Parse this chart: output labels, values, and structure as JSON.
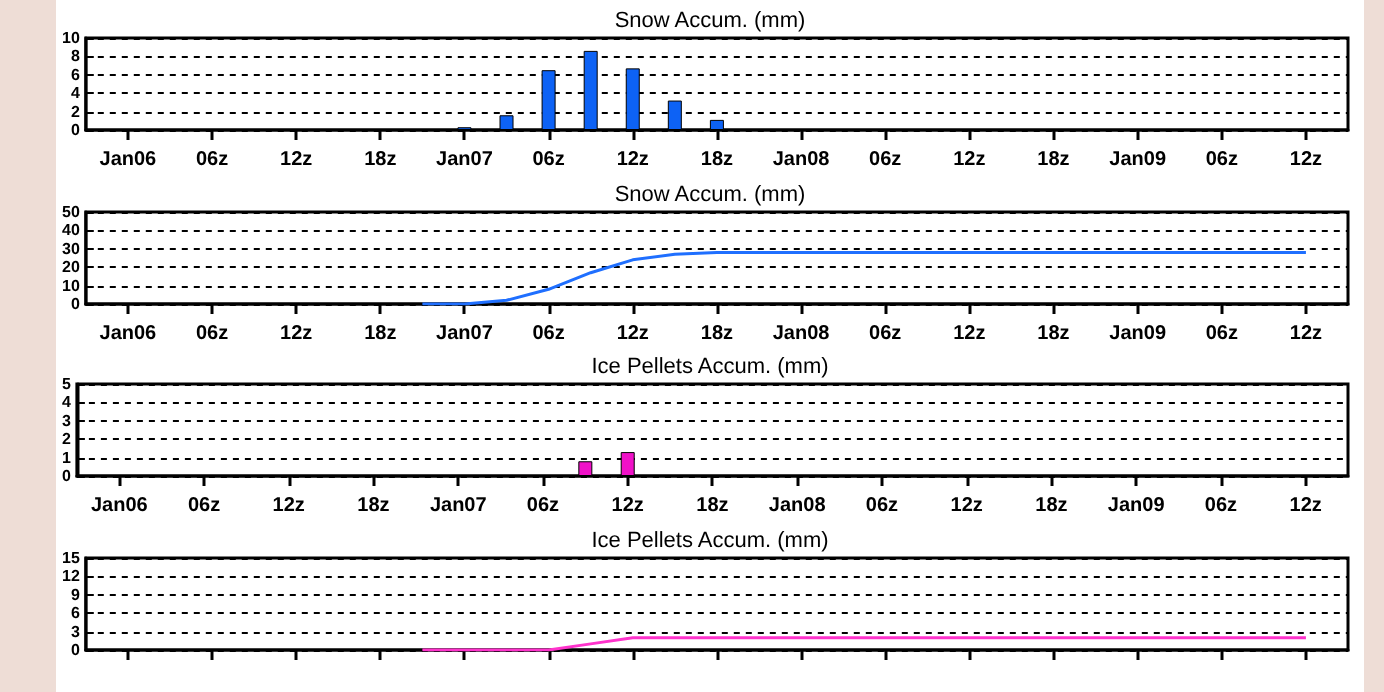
{
  "chart_data": [
    {
      "type": "bar",
      "title": "Snow Accum. (mm)",
      "x": [
        "--01-07T00:00",
        "--01-07T03:00",
        "--01-07T06:00",
        "--01-07T09:00",
        "--01-07T12:00",
        "--01-07T15:00",
        "--01-07T18:00"
      ],
      "values": [
        0.3,
        1.6,
        6.5,
        8.6,
        6.7,
        3.2,
        1.1
      ],
      "color": "#0d62f5",
      "xlim": [
        "--01-05T21:00",
        "--01-09T15:00"
      ],
      "xticks": [
        {
          "value": "--01-06T00:00",
          "label": "Jan06"
        },
        {
          "value": "--01-06T06:00",
          "label": "06z"
        },
        {
          "value": "--01-06T12:00",
          "label": "12z"
        },
        {
          "value": "--01-06T18:00",
          "label": "18z"
        },
        {
          "value": "--01-07T00:00",
          "label": "Jan07"
        },
        {
          "value": "--01-07T06:00",
          "label": "06z"
        },
        {
          "value": "--01-07T12:00",
          "label": "12z"
        },
        {
          "value": "--01-07T18:00",
          "label": "18z"
        },
        {
          "value": "--01-08T00:00",
          "label": "Jan08"
        },
        {
          "value": "--01-08T06:00",
          "label": "06z"
        },
        {
          "value": "--01-08T12:00",
          "label": "12z"
        },
        {
          "value": "--01-08T18:00",
          "label": "18z"
        },
        {
          "value": "--01-09T00:00",
          "label": "Jan09"
        },
        {
          "value": "--01-09T06:00",
          "label": "06z"
        },
        {
          "value": "--01-09T12:00",
          "label": "12z"
        }
      ],
      "ylim": [
        0,
        10
      ],
      "yticks": [
        0,
        2,
        4,
        6,
        8,
        10
      ],
      "grid": "y"
    },
    {
      "type": "line",
      "title": "Snow Accum. (mm)",
      "x": [
        "--01-06T21:00",
        "--01-07T00:00",
        "--01-07T03:00",
        "--01-07T06:00",
        "--01-07T09:00",
        "--01-07T12:00",
        "--01-07T15:00",
        "--01-07T18:00",
        "--01-09T12:00"
      ],
      "values": [
        0,
        0,
        2,
        8,
        17,
        24,
        27,
        28,
        28
      ],
      "color": "#1f6fff",
      "marker": "none",
      "xlim": [
        "--01-05T21:00",
        "--01-09T15:00"
      ],
      "xticks": [
        {
          "value": "--01-06T00:00",
          "label": "Jan06"
        },
        {
          "value": "--01-06T06:00",
          "label": "06z"
        },
        {
          "value": "--01-06T12:00",
          "label": "12z"
        },
        {
          "value": "--01-06T18:00",
          "label": "18z"
        },
        {
          "value": "--01-07T00:00",
          "label": "Jan07"
        },
        {
          "value": "--01-07T06:00",
          "label": "06z"
        },
        {
          "value": "--01-07T12:00",
          "label": "12z"
        },
        {
          "value": "--01-07T18:00",
          "label": "18z"
        },
        {
          "value": "--01-08T00:00",
          "label": "Jan08"
        },
        {
          "value": "--01-08T06:00",
          "label": "06z"
        },
        {
          "value": "--01-08T12:00",
          "label": "12z"
        },
        {
          "value": "--01-08T18:00",
          "label": "18z"
        },
        {
          "value": "--01-09T00:00",
          "label": "Jan09"
        },
        {
          "value": "--01-09T06:00",
          "label": "06z"
        },
        {
          "value": "--01-09T12:00",
          "label": "12z"
        }
      ],
      "ylim": [
        0,
        50
      ],
      "yticks": [
        0,
        10,
        20,
        30,
        40,
        50
      ],
      "grid": "y"
    },
    {
      "type": "bar",
      "title": "Ice Pellets Accum. (mm)",
      "x": [
        "--01-07T09:00",
        "--01-07T12:00"
      ],
      "values": [
        0.8,
        1.3
      ],
      "color": "#f011c8",
      "xlim": [
        "--01-05T21:00",
        "--01-09T15:00"
      ],
      "xticks": [
        {
          "value": "--01-06T00:00",
          "label": "Jan06"
        },
        {
          "value": "--01-06T06:00",
          "label": "06z"
        },
        {
          "value": "--01-06T12:00",
          "label": "12z"
        },
        {
          "value": "--01-06T18:00",
          "label": "18z"
        },
        {
          "value": "--01-07T00:00",
          "label": "Jan07"
        },
        {
          "value": "--01-07T06:00",
          "label": "06z"
        },
        {
          "value": "--01-07T12:00",
          "label": "12z"
        },
        {
          "value": "--01-07T18:00",
          "label": "18z"
        },
        {
          "value": "--01-08T00:00",
          "label": "Jan08"
        },
        {
          "value": "--01-08T06:00",
          "label": "06z"
        },
        {
          "value": "--01-08T12:00",
          "label": "12z"
        },
        {
          "value": "--01-08T18:00",
          "label": "18z"
        },
        {
          "value": "--01-09T00:00",
          "label": "Jan09"
        },
        {
          "value": "--01-09T06:00",
          "label": "06z"
        },
        {
          "value": "--01-09T12:00",
          "label": "12z"
        }
      ],
      "ylim": [
        0,
        5
      ],
      "yticks": [
        0,
        1,
        2,
        3,
        4,
        5
      ],
      "grid": "y"
    },
    {
      "type": "line",
      "title": "Ice Pellets Accum. (mm)",
      "x": [
        "--01-06T21:00",
        "--01-07T06:00",
        "--01-07T09:00",
        "--01-07T12:00",
        "--01-09T12:00"
      ],
      "values": [
        0,
        0,
        1,
        2,
        2
      ],
      "color": "#ff33cc",
      "marker": "none",
      "xlim": [
        "--01-05T21:00",
        "--01-09T15:00"
      ],
      "xticks": [
        {
          "value": "--01-06T00:00",
          "label": null
        },
        {
          "value": "--01-06T06:00",
          "label": null
        },
        {
          "value": "--01-06T12:00",
          "label": null
        },
        {
          "value": "--01-06T18:00",
          "label": null
        },
        {
          "value": "--01-07T00:00",
          "label": null
        },
        {
          "value": "--01-07T06:00",
          "label": null
        },
        {
          "value": "--01-07T12:00",
          "label": null
        },
        {
          "value": "--01-07T18:00",
          "label": null
        },
        {
          "value": "--01-08T00:00",
          "label": null
        },
        {
          "value": "--01-08T06:00",
          "label": null
        },
        {
          "value": "--01-08T12:00",
          "label": null
        },
        {
          "value": "--01-08T18:00",
          "label": null
        },
        {
          "value": "--01-09T00:00",
          "label": null
        },
        {
          "value": "--01-09T06:00",
          "label": null
        },
        {
          "value": "--01-09T12:00",
          "label": null
        }
      ],
      "ylim": [
        0,
        15
      ],
      "yticks": [
        0,
        3,
        6,
        9,
        12,
        15
      ],
      "grid": "y",
      "tick_labels": "y"
    }
  ]
}
